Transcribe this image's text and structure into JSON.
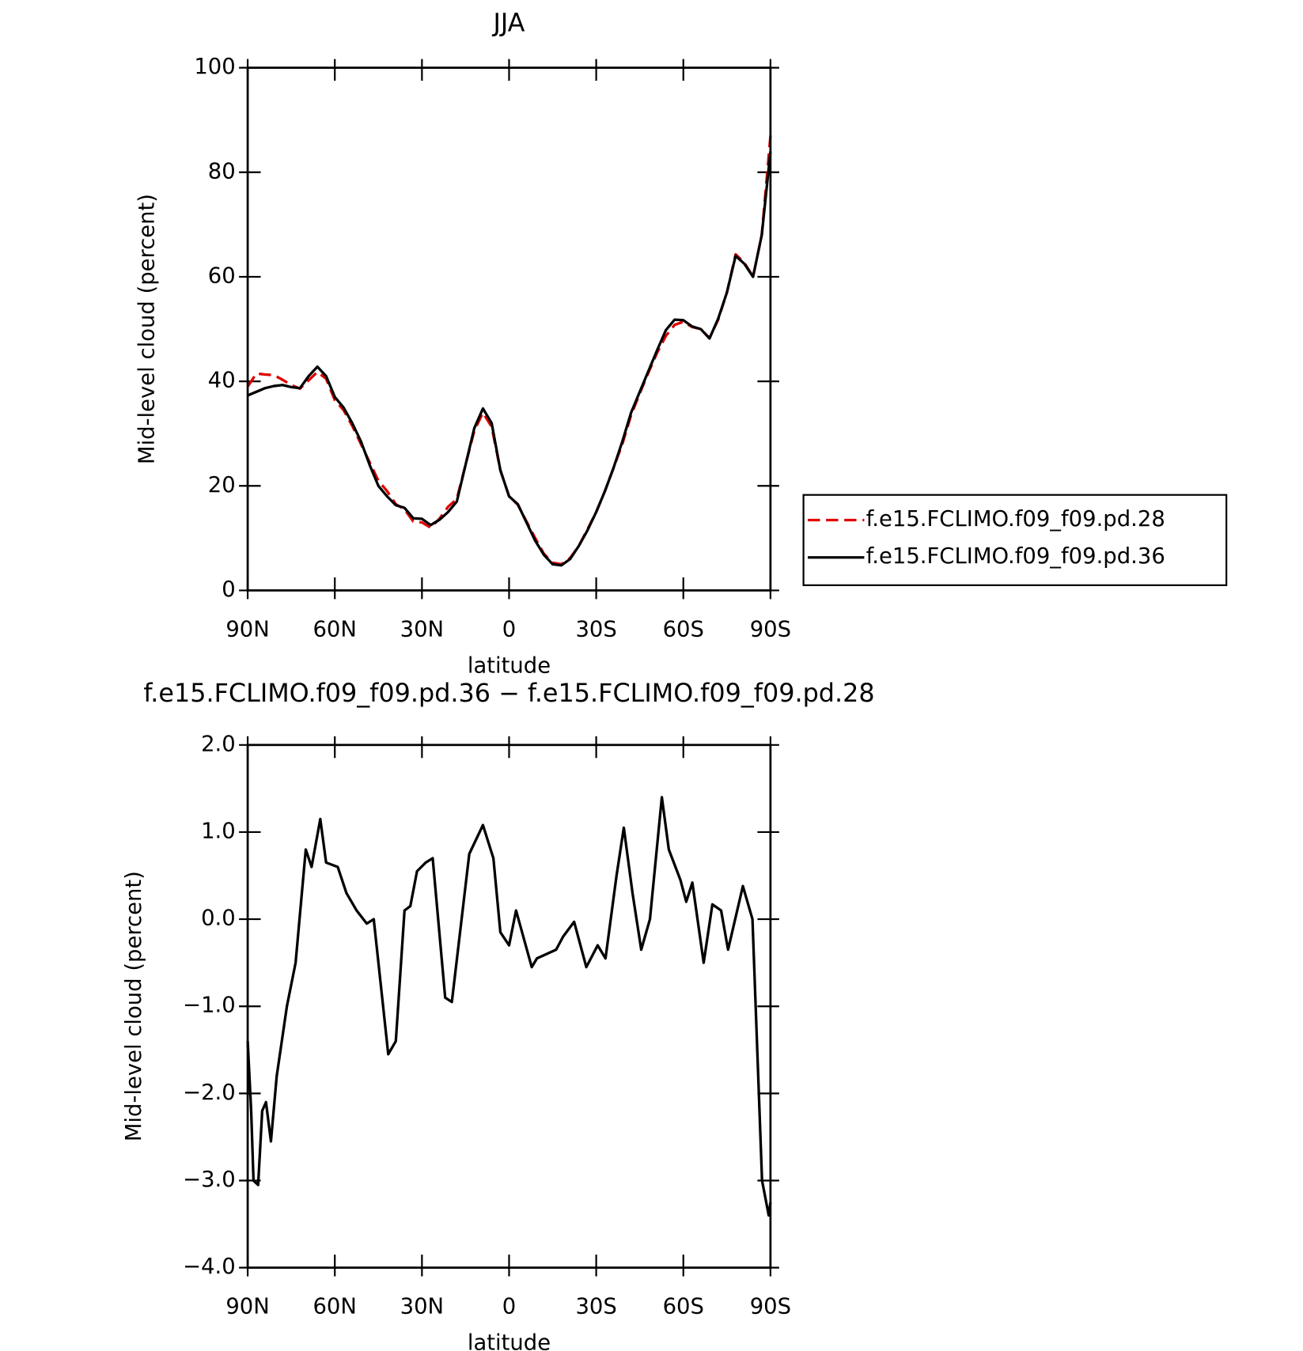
{
  "chart_data": [
    {
      "type": "line",
      "title": "JJA",
      "x_label": "latitude",
      "y_label": "Mid-level cloud (percent)",
      "x": [
        90,
        87,
        84,
        81,
        78,
        75,
        72,
        69,
        66,
        63,
        60,
        57,
        54,
        51,
        48,
        45,
        42,
        39,
        36,
        33,
        30,
        27,
        24,
        21,
        18,
        15,
        12,
        9,
        6,
        3,
        0,
        -3,
        -6,
        -9,
        -12,
        -15,
        -18,
        -21,
        -24,
        -27,
        -30,
        -33,
        -36,
        -39,
        -42,
        -45,
        -48,
        -51,
        -54,
        -57,
        -60,
        -63,
        -66,
        -69,
        -72,
        -75,
        -78,
        -81,
        -84,
        -87,
        -90
      ],
      "series": [
        {
          "name": "f.e15.FCLIMO.f09_f09.pd.28",
          "color": "#e00000",
          "dash": true,
          "values": [
            39,
            41.5,
            41.3,
            41.2,
            40.3,
            39.3,
            38.6,
            40.2,
            41.8,
            40.5,
            36.4,
            34.5,
            31.5,
            28,
            24.5,
            21,
            19,
            16.5,
            15.5,
            13.2,
            13,
            12,
            13.7,
            16,
            17.5,
            24,
            30.5,
            34,
            31.3,
            23,
            18,
            16.4,
            13.2,
            10,
            7,
            5.3,
            5,
            6.2,
            8.5,
            11.7,
            15,
            19,
            23.5,
            28,
            33.5,
            37.7,
            41.7,
            45.5,
            48.7,
            50.8,
            51.4,
            50.4,
            50,
            48.3,
            51.8,
            57,
            64.3,
            62.7,
            60,
            68,
            87
          ]
        },
        {
          "name": "f.e15.FCLIMO.f09_f09.pd.36",
          "color": "#000000",
          "dash": false,
          "values": [
            37.3,
            38,
            38.7,
            39.1,
            39.3,
            38.9,
            38.7,
            41,
            42.8,
            41,
            37,
            35,
            32,
            28.5,
            24,
            20,
            18,
            16.3,
            15.8,
            13.8,
            13.7,
            12.5,
            13.5,
            15,
            17,
            24,
            31,
            34.8,
            32,
            23,
            18,
            16.5,
            13,
            9.5,
            6.8,
            5,
            4.8,
            6,
            8.5,
            11.5,
            15,
            19,
            23.5,
            28.5,
            34,
            38,
            42,
            46,
            49.8,
            51.8,
            51.7,
            50.5,
            50,
            48.2,
            52,
            57,
            64,
            62.5,
            60,
            68,
            84
          ]
        }
      ],
      "xlim": [
        90,
        -90
      ],
      "ylim": [
        0,
        100
      ],
      "xticks": [
        {
          "value": 90,
          "label": "90N"
        },
        {
          "value": 60,
          "label": "60N"
        },
        {
          "value": 30,
          "label": "30N"
        },
        0,
        {
          "value": -30,
          "label": "30S"
        },
        {
          "value": -60,
          "label": "60S"
        },
        {
          "value": -90,
          "label": "90S"
        }
      ],
      "yticks": [
        0,
        20,
        40,
        60,
        80,
        100
      ],
      "legend": "right"
    },
    {
      "type": "line",
      "title": "f.e15.FCLIMO.f09_f09.pd.36 − f.e15.FCLIMO.f09_f09.pd.28",
      "x_label": "latitude",
      "y_label": "Mid-level cloud (percent)",
      "x": [
        90,
        88.8,
        88,
        86.4,
        85,
        83.7,
        82,
        80,
        76.5,
        73.5,
        70,
        68,
        65,
        63,
        59,
        56,
        52.5,
        49,
        46.6,
        41.6,
        39,
        36,
        34,
        31.7,
        28.7,
        26.3,
        22,
        19.7,
        13.7,
        9,
        5.4,
        3,
        0,
        -2.4,
        -7.8,
        -9.6,
        -16.2,
        -18.6,
        -22.4,
        -26.6,
        -30.5,
        -33.2,
        -37,
        -39.5,
        -42.5,
        -45.5,
        -48.5,
        -52.6,
        -55,
        -59,
        -61,
        -63.1,
        -67,
        -70,
        -73,
        -75.4,
        -80.5,
        -83.8,
        -87.1,
        -89.4,
        -90
      ],
      "series": [
        {
          "color": "#000000",
          "dash": false,
          "values": [
            -1.4,
            -2.2,
            -3,
            -3.05,
            -2.2,
            -2.1,
            -2.55,
            -1.8,
            -1,
            -0.5,
            0.8,
            0.6,
            1.15,
            0.65,
            0.6,
            0.3,
            0.1,
            -0.05,
            0,
            -1.55,
            -1.4,
            0.1,
            0.15,
            0.55,
            0.65,
            0.7,
            -0.9,
            -0.95,
            0.75,
            1.08,
            0.7,
            -0.15,
            -0.3,
            0.1,
            -0.55,
            -0.45,
            -0.35,
            -0.2,
            -0.03,
            -0.55,
            -0.3,
            -0.45,
            0.5,
            1.05,
            0.3,
            -0.35,
            0,
            1.4,
            0.8,
            0.45,
            0.2,
            0.42,
            -0.5,
            0.17,
            0.1,
            -0.35,
            0.38,
            0,
            -3,
            -3.4,
            -3.25
          ]
        }
      ],
      "xlim": [
        90,
        -90
      ],
      "ylim": [
        -4,
        2
      ],
      "xticks": [
        {
          "value": 90,
          "label": "90N"
        },
        {
          "value": 60,
          "label": "60N"
        },
        {
          "value": 30,
          "label": "30N"
        },
        0,
        {
          "value": -30,
          "label": "30S"
        },
        {
          "value": -60,
          "label": "60S"
        },
        {
          "value": -90,
          "label": "90S"
        }
      ],
      "yticks": [
        {
          "value": 2,
          "label": "2.0"
        },
        {
          "value": 1,
          "label": "1.0"
        },
        {
          "value": 0,
          "label": "0.0"
        },
        {
          "value": -1,
          "label": "−1.0"
        },
        {
          "value": -2,
          "label": "−2.0"
        },
        {
          "value": -3,
          "label": "−3.0"
        },
        {
          "value": -4,
          "label": "−4.0"
        }
      ]
    }
  ]
}
